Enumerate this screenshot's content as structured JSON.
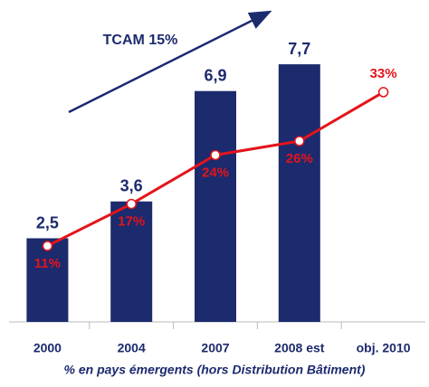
{
  "chart_data": {
    "type": "bar",
    "categories": [
      "2000",
      "2004",
      "2007",
      "2008 est",
      "obj. 2010"
    ],
    "values": [
      2.5,
      3.6,
      6.9,
      7.7,
      null
    ],
    "value_labels": [
      "2,5",
      "3,6",
      "6,9",
      "7,7",
      null
    ],
    "color": "#1c2a6e",
    "line": {
      "values": [
        11,
        17,
        24,
        26,
        33
      ],
      "value_labels": [
        "11%",
        "17%",
        "24%",
        "26%",
        "33%"
      ],
      "color": "#e3141b"
    },
    "annotation": "TCAM 15%",
    "note": "% en pays émergents (hors Distribution Bâtiment)"
  }
}
